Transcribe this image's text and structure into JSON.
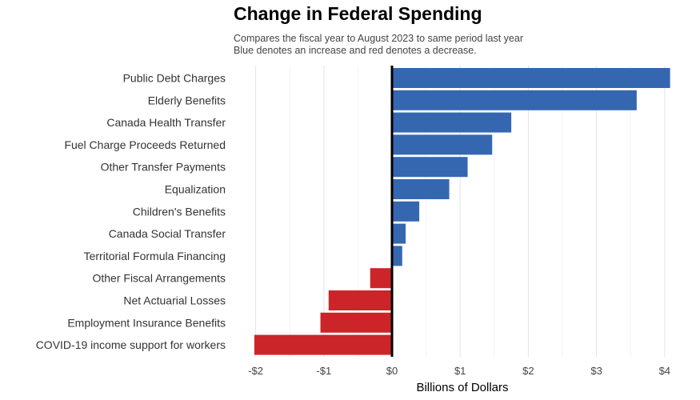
{
  "chart_data": {
    "type": "bar",
    "orientation": "horizontal",
    "title": "Change in Federal Spending",
    "subtitle": [
      "Compares the fiscal year to August 2023 to same period last year",
      "Blue denotes an increase and red denotes a decrease."
    ],
    "xlabel": "Billions of Dollars",
    "ylabel": "",
    "categories": [
      "Public Debt Charges",
      "Elderly Benefits",
      "Canada Health Transfer",
      "Fuel Charge Proceeds Returned",
      "Other Transfer Payments",
      "Equalization",
      "Children's Benefits",
      "Canada Social Transfer",
      "Territorial Formula Financing",
      "Other Fiscal Arrangements",
      "Net Actuarial Losses",
      "Employment Insurance Benefits",
      "COVID-19 income support for workers"
    ],
    "values": [
      4.08,
      3.59,
      1.75,
      1.47,
      1.11,
      0.84,
      0.4,
      0.2,
      0.15,
      -0.32,
      -0.93,
      -1.05,
      -2.02
    ],
    "xlim": [
      -2.1,
      4.1
    ],
    "xticks": [
      -2,
      -1,
      0,
      1,
      2,
      3,
      4
    ],
    "xtick_labels": [
      "-$2",
      "-$1",
      "$0",
      "$1",
      "$2",
      "$3",
      "$4"
    ],
    "colors": {
      "increase": "#3567b1",
      "decrease": "#cc2529",
      "zero_line": "#000000",
      "grid": "#e6e6e6"
    },
    "grid": true,
    "legend": "none"
  }
}
